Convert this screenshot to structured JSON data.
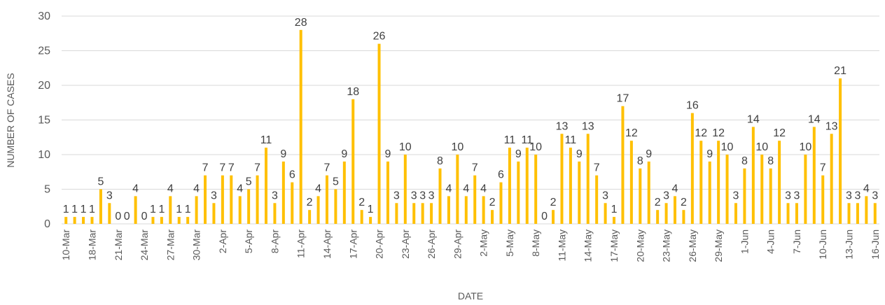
{
  "chart_data": {
    "type": "bar",
    "x_label": "DATE",
    "y_label": "NUMBER OF CASES",
    "color": "#FFC000",
    "grid": true,
    "ylim": [
      0,
      30
    ],
    "yticks": [
      0,
      5,
      10,
      15,
      20,
      25,
      30
    ],
    "categories": [
      "10-Mar",
      null,
      null,
      "18-Mar",
      null,
      null,
      "21-Mar",
      null,
      null,
      "24-Mar",
      null,
      null,
      "27-Mar",
      null,
      null,
      "30-Mar",
      null,
      null,
      "2-Apr",
      null,
      null,
      "5-Apr",
      null,
      null,
      "8-Apr",
      null,
      null,
      "11-Apr",
      null,
      null,
      "14-Apr",
      null,
      null,
      "17-Apr",
      null,
      null,
      "20-Apr",
      null,
      null,
      "23-Apr",
      null,
      null,
      "26-Apr",
      null,
      null,
      "29-Apr",
      null,
      null,
      "2-May",
      null,
      null,
      "5-May",
      null,
      null,
      "8-May",
      null,
      null,
      "11-May",
      null,
      null,
      "14-May",
      null,
      null,
      "17-May",
      null,
      null,
      "20-May",
      null,
      null,
      "23-May",
      null,
      null,
      "26-May",
      null,
      null,
      "29-May",
      null,
      null,
      "1-Jun",
      null,
      null,
      "4-Jun",
      null,
      null,
      "7-Jun",
      null,
      null,
      "10-Jun",
      null,
      null,
      "13-Jun",
      null,
      null,
      "16-Jun"
    ],
    "values": [
      1,
      1,
      1,
      1,
      5,
      3,
      0,
      0,
      4,
      0,
      1,
      1,
      4,
      1,
      1,
      4,
      7,
      3,
      7,
      7,
      4,
      5,
      7,
      11,
      3,
      9,
      6,
      28,
      2,
      4,
      7,
      5,
      9,
      18,
      2,
      1,
      26,
      9,
      3,
      10,
      3,
      3,
      3,
      8,
      4,
      10,
      4,
      7,
      4,
      2,
      6,
      11,
      9,
      11,
      10,
      0,
      2,
      13,
      11,
      9,
      13,
      7,
      3,
      1,
      17,
      12,
      8,
      9,
      2,
      3,
      4,
      2,
      16,
      12,
      9,
      12,
      10,
      3,
      8,
      14,
      10,
      8,
      12,
      3,
      3,
      10,
      14,
      7,
      13,
      21,
      3,
      3,
      4,
      3
    ]
  }
}
